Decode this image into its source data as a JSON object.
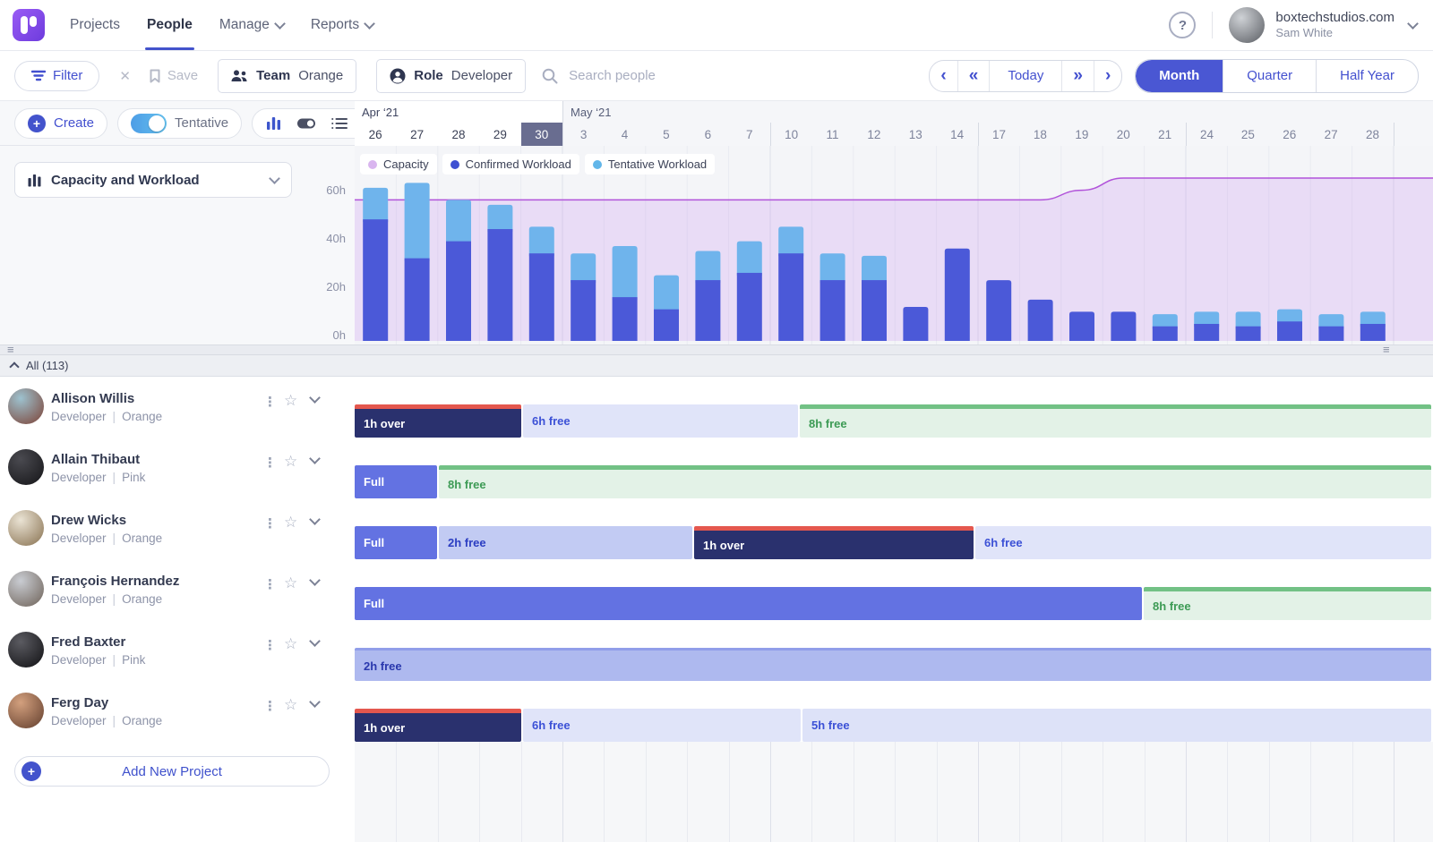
{
  "nav": {
    "items": [
      {
        "label": "Projects",
        "active": false
      },
      {
        "label": "People",
        "active": true
      },
      {
        "label": "Manage",
        "active": false,
        "chevron": true
      },
      {
        "label": "Reports",
        "active": false,
        "chevron": true
      }
    ],
    "help_label": "?",
    "account": {
      "domain": "boxtechstudios.com",
      "user": "Sam White"
    }
  },
  "toolbar": {
    "filter_label": "Filter",
    "save_label": "Save",
    "team_chip": {
      "label": "Team",
      "value": "Orange"
    },
    "role_chip": {
      "label": "Role",
      "value": "Developer"
    },
    "search_placeholder": "Search people",
    "today_label": "Today",
    "views": [
      "Month",
      "Quarter",
      "Half Year"
    ],
    "active_view": "Month"
  },
  "controls": {
    "create_label": "Create",
    "tentative_label": "Tentative",
    "view_select": "Capacity and Workload"
  },
  "timeline": {
    "months": [
      {
        "label": "Apr ‘21",
        "span_days": 5
      },
      {
        "label": "May ‘21",
        "span_days": 20
      }
    ],
    "days": [
      {
        "label": "26",
        "month": "Apr"
      },
      {
        "label": "27",
        "month": "Apr"
      },
      {
        "label": "28",
        "month": "Apr"
      },
      {
        "label": "29",
        "month": "Apr"
      },
      {
        "label": "30",
        "month": "Apr",
        "selected": true
      },
      {
        "label": "3",
        "month": "May",
        "sep": "month"
      },
      {
        "label": "4",
        "month": "May"
      },
      {
        "label": "5",
        "month": "May"
      },
      {
        "label": "6",
        "month": "May"
      },
      {
        "label": "7",
        "month": "May"
      },
      {
        "label": "10",
        "month": "May",
        "sep": "week"
      },
      {
        "label": "11",
        "month": "May"
      },
      {
        "label": "12",
        "month": "May"
      },
      {
        "label": "13",
        "month": "May"
      },
      {
        "label": "14",
        "month": "May"
      },
      {
        "label": "17",
        "month": "May",
        "sep": "week"
      },
      {
        "label": "18",
        "month": "May"
      },
      {
        "label": "19",
        "month": "May"
      },
      {
        "label": "20",
        "month": "May"
      },
      {
        "label": "21",
        "month": "May"
      },
      {
        "label": "24",
        "month": "May",
        "sep": "week"
      },
      {
        "label": "25",
        "month": "May"
      },
      {
        "label": "26",
        "month": "May"
      },
      {
        "label": "27",
        "month": "May"
      },
      {
        "label": "28",
        "month": "May"
      }
    ]
  },
  "chart_data": {
    "type": "bar",
    "title": "Capacity and Workload",
    "categories": [
      "Apr 26",
      "Apr 27",
      "Apr 28",
      "Apr 29",
      "Apr 30",
      "May 3",
      "May 4",
      "May 5",
      "May 6",
      "May 7",
      "May 10",
      "May 11",
      "May 12",
      "May 13",
      "May 14",
      "May 17",
      "May 18",
      "May 19",
      "May 20",
      "May 21",
      "May 24",
      "May 25",
      "May 26",
      "May 27",
      "May 28"
    ],
    "series": [
      {
        "name": "Confirmed Workload",
        "color": "#4b59d8",
        "values": [
          50,
          34,
          41,
          46,
          36,
          25,
          18,
          13,
          25,
          28,
          36,
          25,
          25,
          14,
          38,
          25,
          17,
          12,
          12,
          6,
          7,
          6,
          8,
          6,
          7
        ]
      },
      {
        "name": "Tentative Workload",
        "color": "#6fb4ec",
        "values": [
          13,
          31,
          17,
          10,
          11,
          11,
          21,
          14,
          12,
          13,
          11,
          11,
          10,
          0,
          0,
          0,
          0,
          0,
          0,
          5,
          5,
          6,
          5,
          5,
          5
        ]
      },
      {
        "name": "Capacity",
        "type": "area-line",
        "fill": "rgba(178,94,234,0.16)",
        "line_color": "#b153da",
        "values": [
          58,
          58,
          58,
          58,
          58,
          58,
          58,
          58,
          58,
          58,
          58,
          58,
          58,
          58,
          58,
          58,
          58,
          62,
          67,
          67,
          67,
          67,
          67,
          67,
          67
        ]
      }
    ],
    "legend": [
      {
        "label": "Capacity",
        "color": "#d9b5ef"
      },
      {
        "label": "Confirmed Workload",
        "color": "#3f51d2"
      },
      {
        "label": "Tentative Workload",
        "color": "#62b6e9"
      }
    ],
    "legend_position": "top-left",
    "ylabel_ticks": [
      "60h",
      "40h",
      "20h",
      "0h"
    ],
    "ylim": [
      0,
      70
    ],
    "grid": "vertical-day-lines"
  },
  "section": {
    "label": "All (113)"
  },
  "ui": {
    "subtitle_divider": "|"
  },
  "people": [
    {
      "name": "Allison Willis",
      "role": "Developer",
      "team": "Orange",
      "avatar": [
        "#9dc2cf",
        "#7c4134"
      ],
      "bars": [
        {
          "label": "1h over",
          "kind": "over",
          "start": 0,
          "end": 188
        },
        {
          "label": "6h free",
          "kind": "free",
          "start": 188,
          "end": 497
        },
        {
          "label": "8h free",
          "kind": "green",
          "start": 497,
          "end": 1204
        }
      ]
    },
    {
      "name": "Allain Thibaut",
      "role": "Developer",
      "team": "Pink",
      "avatar": [
        "#4a4a50",
        "#141417"
      ],
      "bars": [
        {
          "label": "Full",
          "kind": "full",
          "start": 0,
          "end": 94
        },
        {
          "label": "8h free",
          "kind": "green",
          "start": 94,
          "end": 1204
        }
      ]
    },
    {
      "name": "Drew Wicks",
      "role": "Developer",
      "team": "Orange",
      "avatar": [
        "#eae3d4",
        "#87704f"
      ],
      "bars": [
        {
          "label": "Full",
          "kind": "full",
          "start": 0,
          "end": 94
        },
        {
          "label": "2h free",
          "kind": "free-mid",
          "start": 94,
          "end": 379
        },
        {
          "label": "1h over",
          "kind": "over",
          "start": 379,
          "end": 693
        },
        {
          "label": "6h free",
          "kind": "free",
          "start": 693,
          "end": 1204
        }
      ]
    },
    {
      "name": "François Hernandez",
      "role": "Developer",
      "team": "Orange",
      "avatar": [
        "#c9ccd2",
        "#6d6157"
      ],
      "bars": [
        {
          "label": "Full",
          "kind": "full",
          "start": 0,
          "end": 881
        },
        {
          "label": "8h free",
          "kind": "green",
          "start": 881,
          "end": 1204
        }
      ]
    },
    {
      "name": "Fred Baxter",
      "role": "Developer",
      "team": "Pink",
      "avatar": [
        "#5b5b61",
        "#101013"
      ],
      "bars": [
        {
          "label": "2h free",
          "kind": "free-deep",
          "start": 0,
          "end": 1204
        }
      ]
    },
    {
      "name": "Ferg Day",
      "role": "Developer",
      "team": "Orange",
      "avatar": [
        "#d3a07e",
        "#613d2c"
      ],
      "bars": [
        {
          "label": "1h over",
          "kind": "over",
          "start": 0,
          "end": 188
        },
        {
          "label": "6h free",
          "kind": "free",
          "start": 188,
          "end": 500
        },
        {
          "label": "5h free",
          "kind": "free-alt",
          "start": 500,
          "end": 1204
        }
      ]
    }
  ],
  "footer": {
    "add_label": "Add New Project"
  }
}
